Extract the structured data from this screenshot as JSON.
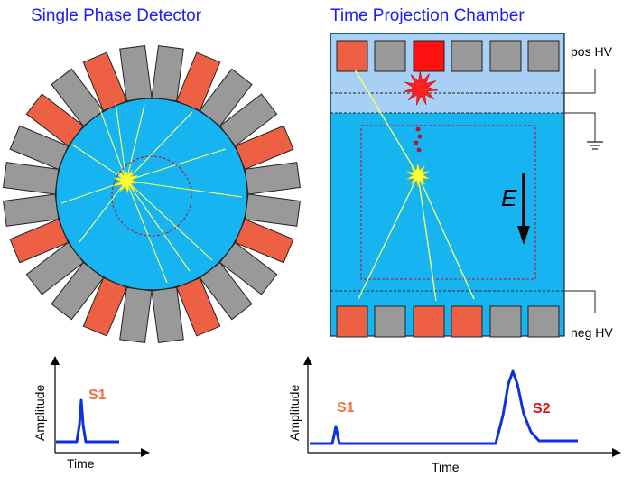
{
  "colors": {
    "title": "#1a1aff",
    "detector_blue": "#16b4f0",
    "gas_blue": "#a8d0f4",
    "pmt_gray": "#999999",
    "pmt_hit": "#ee6044",
    "pmt_bright": "#ff1111",
    "track": "#ffff66",
    "signal": "#1030e0",
    "s1_label": "#f07040",
    "s2_label": "#e01010"
  },
  "left_panel": {
    "title": "Single Phase Detector",
    "waveform": {
      "ylabel": "Amplitude",
      "xlabel": "Time",
      "peak_label": "S1"
    }
  },
  "right_panel": {
    "title": "Time Projection Chamber",
    "pos_hv_label": "pos HV",
    "neg_hv_label": "neg HV",
    "field_label": "E",
    "waveform": {
      "ylabel": "Amplitude",
      "xlabel": "Time",
      "s1_label": "S1",
      "s2_label": "S2"
    }
  }
}
